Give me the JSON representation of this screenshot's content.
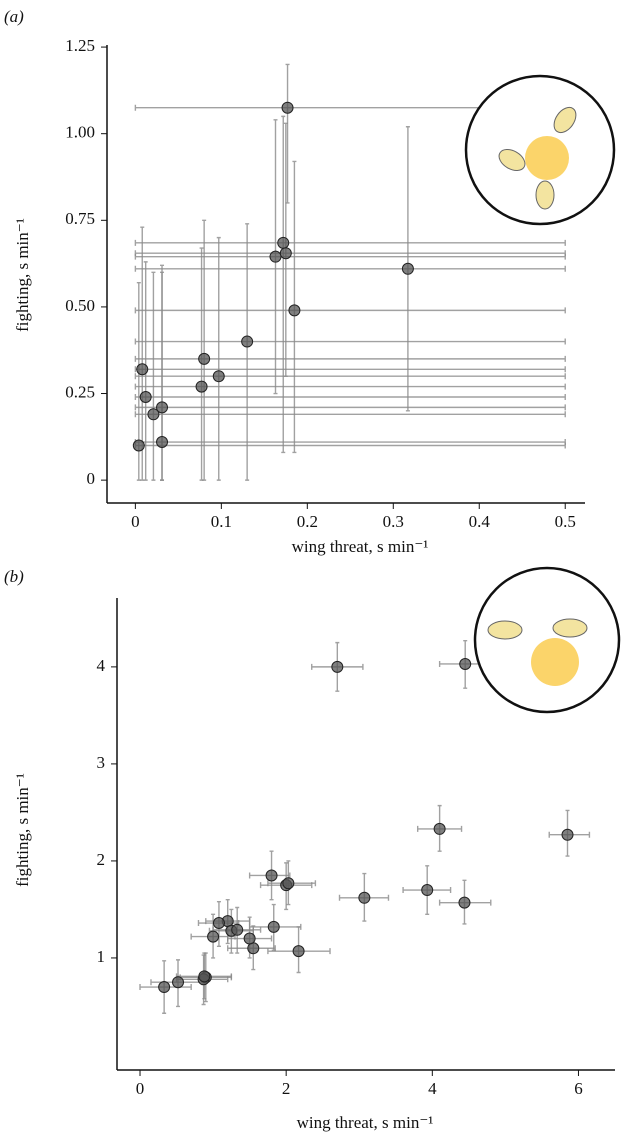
{
  "chart_data": [
    {
      "type": "scatter",
      "panel_label": "(a)",
      "x_label": "wing threat, s min⁻¹",
      "y_label": "fighting, s min⁻¹",
      "xlim": [
        -0.033,
        0.523
      ],
      "ylim": [
        -0.066,
        1.256
      ],
      "xticks": [
        0,
        0.1,
        0.2,
        0.3,
        0.4,
        0.5
      ],
      "yticks": [
        0,
        0.25,
        {
          "value": 0.5,
          "label": "0.50"
        },
        0.75,
        {
          "value": 1,
          "label": "1.00"
        },
        1.25
      ],
      "color": "#555555",
      "x": [
        0.004,
        0.008,
        0.012,
        0.021,
        0.031,
        0.031,
        0.077,
        0.08,
        0.097,
        0.13,
        0.163,
        0.172,
        0.175,
        0.177,
        0.185,
        0.317
      ],
      "y": [
        0.1,
        0.32,
        0.24,
        0.19,
        0.21,
        0.11,
        0.27,
        0.35,
        0.3,
        0.4,
        0.645,
        0.685,
        0.655,
        1.075,
        0.49,
        0.61
      ],
      "x_lower": [
        0,
        0,
        0,
        0,
        0,
        0,
        0,
        0,
        0,
        0,
        0,
        0,
        0,
        0,
        0,
        0
      ],
      "x_upper": [
        0.5,
        0.5,
        0.5,
        0.5,
        0.5,
        0.5,
        0.5,
        0.5,
        0.5,
        0.5,
        0.5,
        0.5,
        0.5,
        0.46,
        0.5,
        0.5
      ],
      "y_lower": [
        0,
        0,
        0,
        0,
        0,
        0,
        0,
        0,
        0,
        0,
        0.25,
        0.08,
        0.3,
        0.8,
        0.08,
        0.2
      ],
      "y_upper": [
        0.57,
        0.73,
        0.63,
        0.6,
        0.62,
        0.6,
        0.67,
        0.75,
        0.7,
        0.74,
        1.04,
        1.05,
        1.03,
        1.2,
        0.92,
        1.02
      ]
    },
    {
      "type": "scatter",
      "panel_label": "(b)",
      "x_label": "wing threat, s min⁻¹",
      "y_label": "fighting,  s min⁻¹",
      "xlim": [
        -0.315,
        6.5
      ],
      "ylim": [
        -0.155,
        4.71
      ],
      "xticks": [
        0,
        2,
        4,
        6
      ],
      "yticks": [
        1,
        2,
        3,
        4
      ],
      "color": "#555555",
      "x": [
        2.7,
        4.45,
        5.85,
        4.1,
        3.07,
        3.93,
        4.44,
        2.0,
        2.03,
        1.8,
        1.83,
        2.17,
        1.55,
        1.5,
        1.2,
        1.08,
        1.25,
        1.33,
        1.0,
        0.9,
        0.87,
        0.88,
        0.52,
        0.33
      ],
      "y": [
        4.0,
        4.03,
        2.27,
        2.33,
        1.62,
        1.7,
        1.57,
        1.75,
        1.77,
        1.85,
        1.32,
        1.07,
        1.1,
        1.2,
        1.38,
        1.36,
        1.28,
        1.29,
        1.22,
        0.8,
        0.78,
        0.81,
        0.75,
        0.7
      ],
      "x_lower": [
        2.35,
        4.1,
        5.6,
        3.8,
        2.73,
        3.6,
        4.1,
        1.65,
        1.75,
        1.5,
        1.5,
        1.75,
        1.2,
        1.2,
        0.9,
        0.8,
        0.95,
        1.0,
        0.7,
        0.55,
        0.5,
        0.5,
        0.15,
        0.0
      ],
      "x_upper": [
        3.05,
        4.8,
        6.15,
        4.4,
        3.4,
        4.25,
        4.8,
        2.35,
        2.4,
        2.05,
        2.2,
        2.6,
        1.85,
        1.8,
        1.5,
        1.35,
        1.55,
        1.65,
        1.3,
        1.25,
        1.2,
        1.25,
        0.85,
        0.7
      ],
      "y_lower": [
        3.75,
        3.78,
        2.05,
        2.1,
        1.38,
        1.45,
        1.35,
        1.5,
        1.55,
        1.6,
        1.08,
        0.85,
        0.88,
        1.0,
        1.15,
        1.12,
        1.05,
        1.05,
        1.0,
        0.55,
        0.52,
        0.58,
        0.5,
        0.43
      ],
      "y_upper": [
        4.25,
        4.27,
        2.52,
        2.57,
        1.87,
        1.95,
        1.8,
        1.98,
        2.0,
        2.1,
        1.55,
        1.32,
        1.33,
        1.42,
        1.6,
        1.58,
        1.5,
        1.52,
        1.45,
        1.05,
        1.03,
        1.05,
        0.98,
        0.97
      ]
    }
  ]
}
